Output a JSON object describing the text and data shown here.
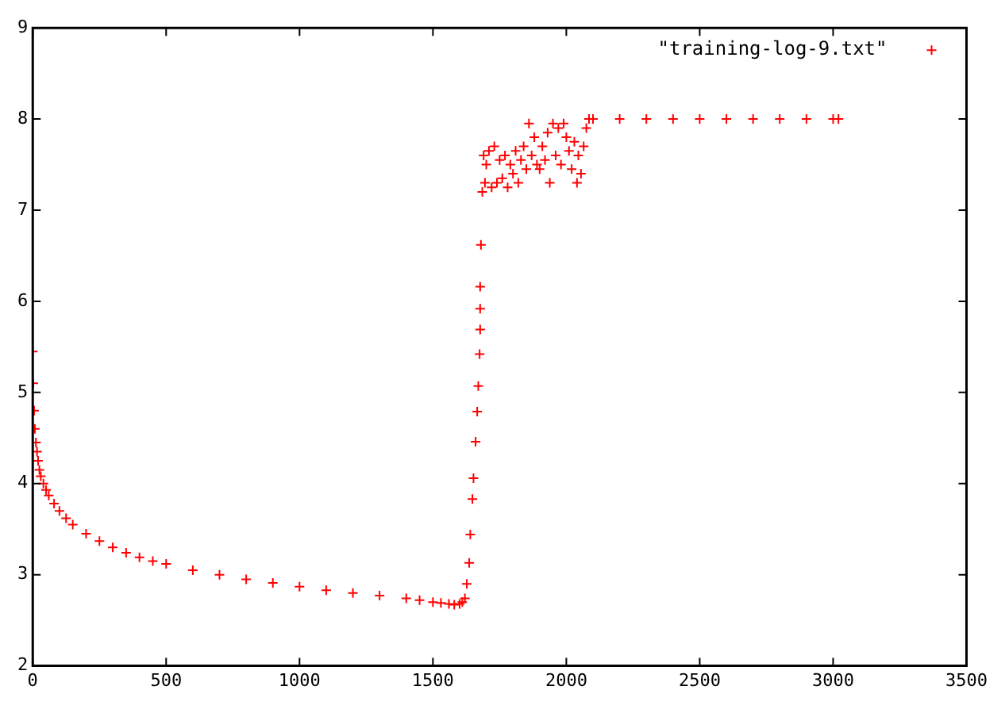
{
  "chart_data": {
    "type": "scatter",
    "xlim": [
      0,
      3500
    ],
    "xticks": [
      0,
      500,
      1000,
      1500,
      2000,
      2500,
      3000,
      3500
    ],
    "ylim": [
      2,
      9
    ],
    "yticks": [
      2,
      3,
      4,
      5,
      6,
      7,
      8,
      9
    ],
    "legend": "top right",
    "marker": "cross",
    "grid": false,
    "series": [
      {
        "name": "\"training-log-9.txt\"",
        "color": "#ff0000",
        "x": [
          0,
          2,
          5,
          8,
          12,
          16,
          20,
          25,
          30,
          40,
          50,
          60,
          80,
          100,
          125,
          150,
          200,
          250,
          300,
          350,
          400,
          450,
          500,
          600,
          700,
          800,
          900,
          1000,
          1100,
          1200,
          1300,
          1400,
          1450,
          1500,
          1530,
          1560,
          1580,
          1600,
          1610,
          1620,
          1627,
          1636,
          1640,
          1648,
          1652,
          1660,
          1666,
          1670,
          1675,
          1677,
          1677,
          1677,
          1680,
          1685,
          1690,
          1695,
          1700,
          1710,
          1720,
          1730,
          1740,
          1750,
          1760,
          1770,
          1780,
          1790,
          1800,
          1810,
          1820,
          1830,
          1840,
          1850,
          1860,
          1870,
          1880,
          1890,
          1900,
          1910,
          1920,
          1930,
          1938,
          1950,
          1960,
          1970,
          1980,
          1990,
          2000,
          2010,
          2020,
          2030,
          2040,
          2045,
          2055,
          2065,
          2075,
          2085,
          2100,
          2200,
          2300,
          2400,
          2500,
          2600,
          2700,
          2800,
          2900,
          3000,
          3020
        ],
        "values": [
          5.45,
          5.1,
          4.8,
          4.6,
          4.45,
          4.35,
          4.25,
          4.15,
          4.08,
          4.0,
          3.93,
          3.87,
          3.78,
          3.7,
          3.62,
          3.55,
          3.45,
          3.37,
          3.3,
          3.24,
          3.19,
          3.15,
          3.12,
          3.05,
          3.0,
          2.95,
          2.91,
          2.87,
          2.83,
          2.8,
          2.77,
          2.74,
          2.72,
          2.7,
          2.69,
          2.68,
          2.67,
          2.68,
          2.7,
          2.74,
          2.9,
          3.13,
          3.44,
          3.83,
          4.06,
          4.46,
          4.79,
          5.07,
          5.42,
          5.69,
          5.92,
          6.16,
          6.62,
          7.2,
          7.6,
          7.3,
          7.5,
          7.65,
          7.25,
          7.7,
          7.3,
          7.55,
          7.35,
          7.6,
          7.25,
          7.5,
          7.4,
          7.65,
          7.3,
          7.55,
          7.7,
          7.45,
          7.95,
          7.6,
          7.8,
          7.5,
          7.45,
          7.7,
          7.55,
          7.85,
          7.3,
          7.95,
          7.6,
          7.9,
          7.5,
          7.95,
          7.8,
          7.65,
          7.45,
          7.75,
          7.3,
          7.6,
          7.4,
          7.7,
          7.9,
          8.0,
          8.0,
          8.0,
          8.0,
          8.0,
          8.0,
          8.0,
          8.0,
          8.0,
          8.0,
          8.0,
          8.0
        ]
      }
    ]
  }
}
